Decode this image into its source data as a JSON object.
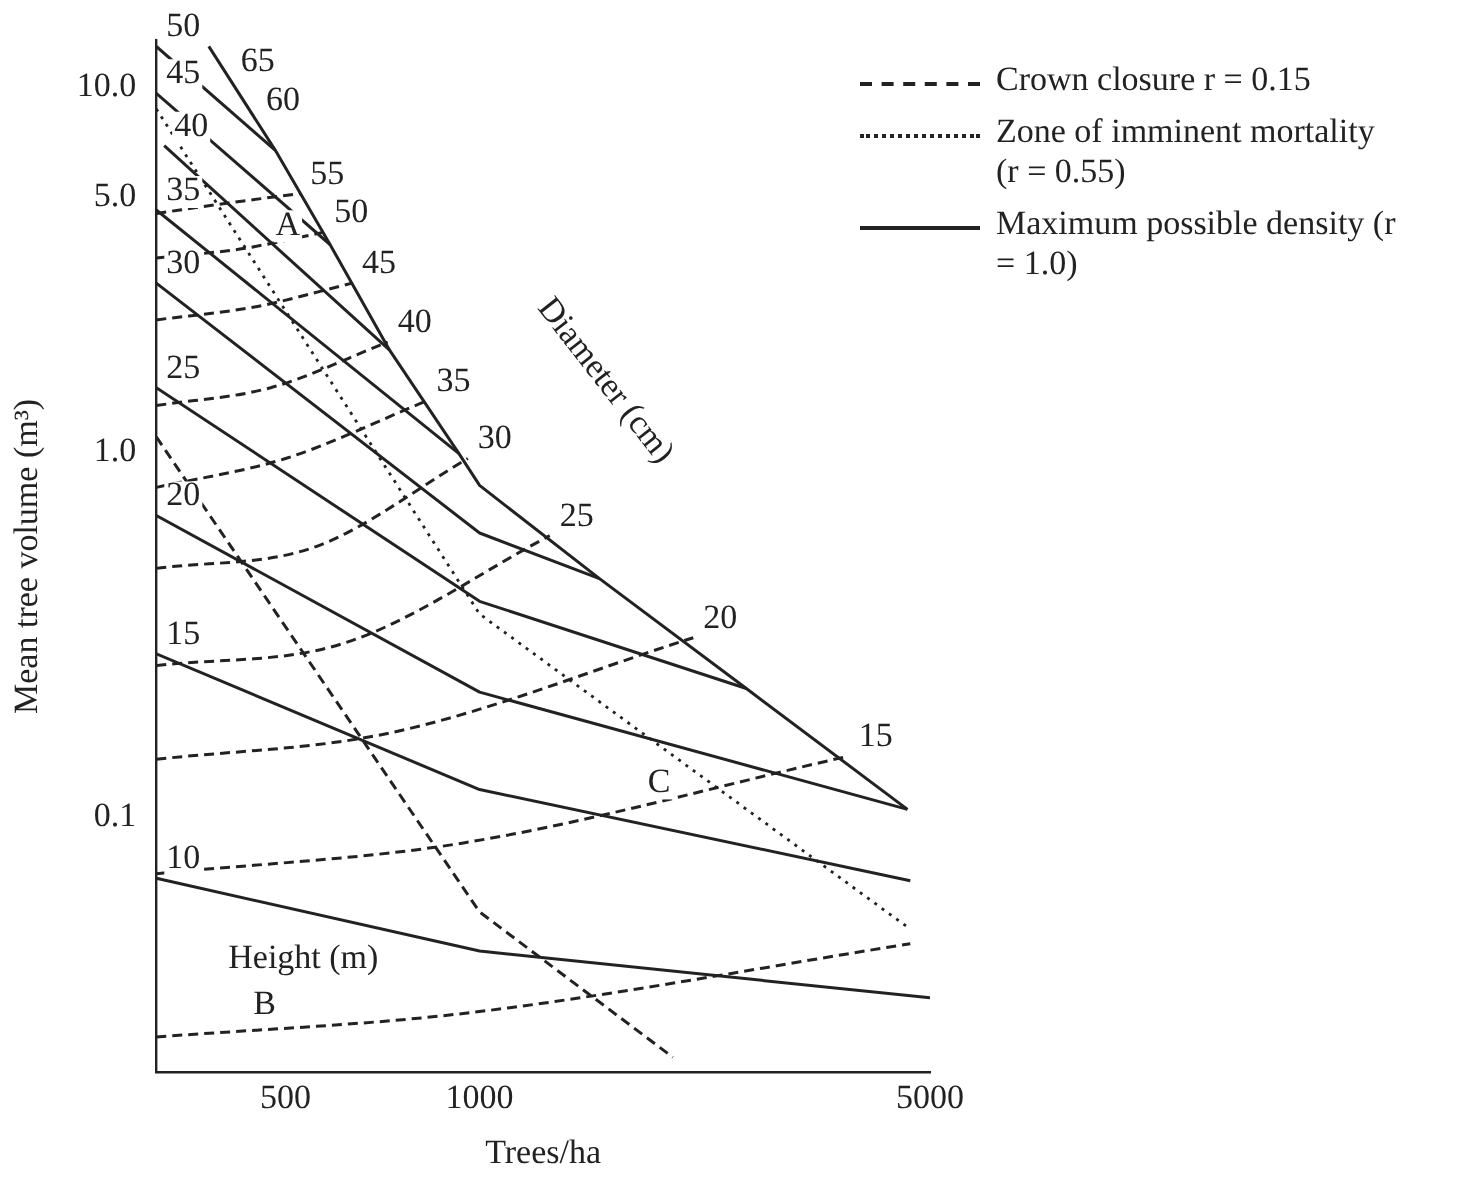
{
  "chart_data": {
    "type": "line",
    "xlabel": "Trees/ha",
    "ylabel": "Mean tree volume (m³)",
    "log": "xy",
    "grid": false,
    "marker": "none",
    "legend": "top right",
    "xlim": [
      315,
      5000
    ],
    "xticks": [
      500,
      1000,
      5000
    ],
    "ylim": [
      0.02,
      13.4
    ],
    "yticks": [
      {
        "value": 10,
        "label": "10.0"
      },
      {
        "value": 5,
        "label": "5.0"
      },
      {
        "value": 1,
        "label": "1.0"
      },
      0.1
    ],
    "series": [
      {
        "color": "#222222",
        "line_style": "solid",
        "x": [
          315,
          482
        ],
        "values": [
          12.9,
          6.7
        ]
      },
      {
        "color": "#222222",
        "line_style": "solid",
        "x": [
          315,
          586
        ],
        "values": [
          9.6,
          3.7
        ]
      },
      {
        "color": "#222222",
        "line_style": "solid",
        "x": [
          324,
          725
        ],
        "values": [
          6.9,
          1.9
        ]
      },
      {
        "color": "#222222",
        "line_style": "solid",
        "x": [
          315,
          929
        ],
        "values": [
          4.6,
          0.99
        ]
      },
      {
        "color": "#222222",
        "line_style": "solid",
        "x": [
          315,
          1000,
          1535
        ],
        "values": [
          2.9,
          0.6,
          0.45
        ]
      },
      {
        "color": "#222222",
        "line_style": "solid",
        "x": [
          315,
          1000,
          2594
        ],
        "values": [
          1.5,
          0.39,
          0.225
        ]
      },
      {
        "color": "#222222",
        "line_style": "solid",
        "x": [
          315,
          1000,
          4613
        ],
        "values": [
          0.67,
          0.22,
          0.105
        ]
      },
      {
        "color": "#222222",
        "line_style": "solid",
        "x": [
          315,
          1000,
          4660
        ],
        "values": [
          0.28,
          0.119,
          0.067
        ]
      },
      {
        "color": "#222222",
        "line_style": "solid",
        "x": [
          315,
          1000,
          5000
        ],
        "values": [
          0.068,
          0.043,
          0.032
        ]
      },
      {
        "name": "Crown closure r = 0.15",
        "color": "#222222",
        "line_style": "dashed",
        "x": [
          315,
          1000,
          1995
        ],
        "values": [
          1.1,
          0.055,
          0.022
        ]
      },
      {
        "name": "Zone of imminent mortality (r = 0.55)",
        "color": "#222222",
        "line_style": "dotted",
        "x": [
          315,
          1000,
          4613
        ],
        "values": [
          8.7,
          0.36,
          0.05
        ]
      },
      {
        "name": "Maximum possible density (r = 1.0)",
        "color": "#222222",
        "line_style": "solid",
        "x": [
          380,
          482,
          586,
          725,
          929,
          1000,
          1535,
          2594,
          4613
        ],
        "values": [
          12.9,
          6.7,
          3.7,
          1.9,
          0.99,
          0.81,
          0.45,
          0.225,
          0.105
        ]
      },
      {
        "color": "#222222",
        "line_style": "dashed",
        "x": [
          315,
          405,
          527
        ],
        "values": [
          4.5,
          4.8,
          5.1
        ]
      },
      {
        "color": "#222222",
        "line_style": "dashed",
        "x": [
          315,
          427,
          574
        ],
        "values": [
          3.4,
          3.6,
          4.0
        ]
      },
      {
        "color": "#222222",
        "line_style": "dashed",
        "x": [
          315,
          450,
          634
        ],
        "values": [
          2.3,
          2.5,
          2.9
        ]
      },
      {
        "color": "#222222",
        "line_style": "dashed",
        "x": [
          315,
          474,
          720
        ],
        "values": [
          1.34,
          1.5,
          2.0
        ]
      },
      {
        "color": "#222222",
        "line_style": "dashed",
        "x": [
          315,
          500,
          827
        ],
        "values": [
          0.8,
          0.96,
          1.38
        ]
      },
      {
        "color": "#222222",
        "line_style": "dashed",
        "x": [
          315,
          556,
          959
        ],
        "values": [
          0.48,
          0.55,
          0.96
        ]
      },
      {
        "color": "#222222",
        "line_style": "dashed",
        "x": [
          315,
          618,
          1285
        ],
        "values": [
          0.26,
          0.3,
          0.59
        ]
      },
      {
        "color": "#222222",
        "line_style": "dashed",
        "x": [
          315,
          725,
          2146
        ],
        "values": [
          0.144,
          0.17,
          0.31
        ]
      },
      {
        "color": "#222222",
        "line_style": "dashed",
        "x": [
          315,
          944,
          3741
        ],
        "values": [
          0.07,
          0.085,
          0.147
        ]
      },
      {
        "color": "#222222",
        "line_style": "dashed",
        "x": [
          315,
          944,
          4660
        ],
        "values": [
          0.025,
          0.029,
          0.045
        ]
      }
    ],
    "annotations": [
      {
        "text": "50",
        "x": 315,
        "y": 12.9
      },
      {
        "text": "45",
        "x": 315,
        "y": 9.6
      },
      {
        "text": "40",
        "x": 324,
        "y": 6.9
      },
      {
        "text": "35",
        "x": 315,
        "y": 4.6
      },
      {
        "text": "30",
        "x": 315,
        "y": 2.9
      },
      {
        "text": "25",
        "x": 315,
        "y": 1.5
      },
      {
        "text": "20",
        "x": 315,
        "y": 0.67
      },
      {
        "text": "15",
        "x": 315,
        "y": 0.28
      },
      {
        "text": "10",
        "x": 315,
        "y": 0.068
      },
      {
        "text": "65",
        "x": 411,
        "y": 10.4
      },
      {
        "text": "60",
        "x": 450,
        "y": 8.1
      },
      {
        "text": "55",
        "x": 527,
        "y": 5.1
      },
      {
        "text": "50",
        "x": 574,
        "y": 4.0
      },
      {
        "text": "45",
        "x": 634,
        "y": 2.9
      },
      {
        "text": "40",
        "x": 720,
        "y": 2.0
      },
      {
        "text": "35",
        "x": 827,
        "y": 1.38
      },
      {
        "text": "30",
        "x": 959,
        "y": 0.96
      },
      {
        "text": "25",
        "x": 1285,
        "y": 0.59
      },
      {
        "text": "20",
        "x": 2146,
        "y": 0.31
      },
      {
        "text": "15",
        "x": 3741,
        "y": 0.147
      },
      "A",
      "B",
      "C",
      "Height (m)",
      "Diameter (cm)"
    ]
  }
}
